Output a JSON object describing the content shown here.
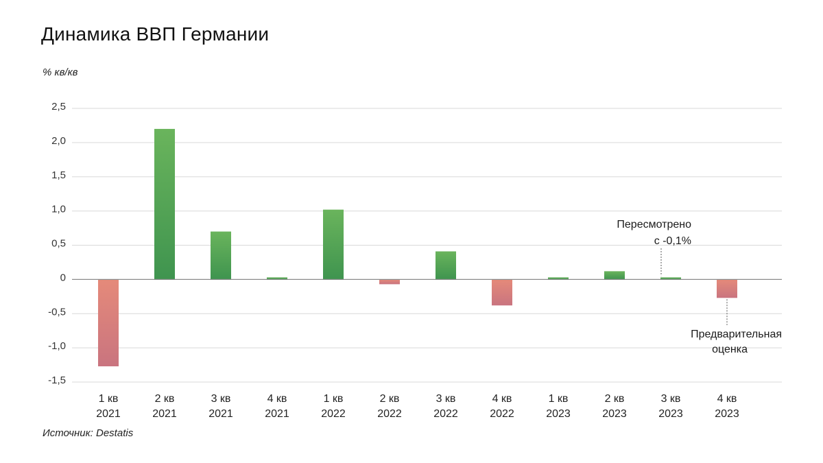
{
  "header": {
    "title": "Динамика ВВП Германии",
    "unit": "% кв/кв"
  },
  "footer": {
    "source": "Источник: Destatis"
  },
  "colors": {
    "positive_top": "#6ab45c",
    "positive_bottom": "#3f944f",
    "negative_top": "#e58a7a",
    "negative_bottom": "#c9747f",
    "grid": "#d9d9d9",
    "zero_line": "#8a8a8a"
  },
  "chart_data": {
    "type": "bar",
    "title": "Динамика ВВП Германии",
    "ylabel": "% кв/кв",
    "xlabel": "",
    "ylim": [
      -1.5,
      2.5
    ],
    "yticks": [
      2.5,
      2.0,
      1.5,
      1.0,
      0.5,
      0,
      -0.5,
      -1.0,
      -1.5
    ],
    "ytick_labels": [
      "2,5",
      "2,0",
      "1,5",
      "1,0",
      "0,5",
      "0",
      "-0,5",
      "-1,0",
      "-1,5"
    ],
    "grid": true,
    "categories": [
      [
        "1 кв",
        "2021"
      ],
      [
        "2 кв",
        "2021"
      ],
      [
        "3 кв",
        "2021"
      ],
      [
        "4 кв",
        "2021"
      ],
      [
        "1 кв",
        "2022"
      ],
      [
        "2 кв",
        "2022"
      ],
      [
        "3 кв",
        "2022"
      ],
      [
        "4 кв",
        "2022"
      ],
      [
        "1 кв",
        "2023"
      ],
      [
        "2 кв",
        "2023"
      ],
      [
        "3 кв",
        "2023"
      ],
      [
        "4 кв",
        "2023"
      ]
    ],
    "values": [
      -1.27,
      2.2,
      0.7,
      0.03,
      1.02,
      -0.07,
      0.41,
      -0.38,
      0.03,
      0.12,
      0.03,
      -0.27
    ],
    "annotations": [
      {
        "category_index": 10,
        "lines": [
          "Пересмотрено",
          "с -0,1%"
        ],
        "position": "above"
      },
      {
        "category_index": 11,
        "lines": [
          "Предварительная",
          "оценка"
        ],
        "position": "below"
      }
    ]
  }
}
